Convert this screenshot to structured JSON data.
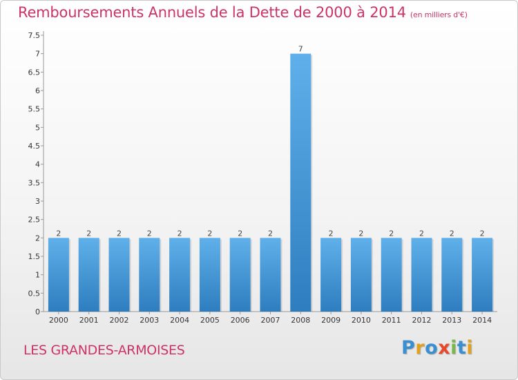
{
  "title": "Remboursements Annuels de la Dette de 2000 à 2014",
  "unit_label": "(en milliers d'€)",
  "commune": "LES GRANDES-ARMOISES",
  "logo": {
    "letters": [
      "P",
      "r",
      "o",
      "x",
      "i",
      "t",
      "i"
    ],
    "colors": [
      "#3a8fd0",
      "#e0a020",
      "#3a8fd0",
      "#e8472a",
      "#7ab648",
      "#3a8fd0",
      "#e0a020"
    ]
  },
  "colors": {
    "title": "#cc3366",
    "bar_top": "#5fb0ea",
    "bar_bottom": "#2e7dbf"
  },
  "chart_data": {
    "type": "bar",
    "categories": [
      "2000",
      "2001",
      "2002",
      "2003",
      "2004",
      "2005",
      "2006",
      "2007",
      "2008",
      "2009",
      "2010",
      "2011",
      "2012",
      "2013",
      "2014"
    ],
    "values": [
      2,
      2,
      2,
      2,
      2,
      2,
      2,
      2,
      7,
      2,
      2,
      2,
      2,
      2,
      2
    ],
    "data_labels": [
      "2",
      "2",
      "2",
      "2",
      "2",
      "2",
      "2",
      "2",
      "7",
      "2",
      "2",
      "2",
      "2",
      "2",
      "2"
    ],
    "ylim": [
      0,
      7.5
    ],
    "yticks": [
      0,
      0.5,
      1,
      1.5,
      2,
      2.5,
      3,
      3.5,
      4,
      4.5,
      5,
      5.5,
      6,
      6.5,
      7,
      7.5
    ],
    "ytick_labels": [
      "0",
      "0.5",
      "1",
      "1.5",
      "2",
      "2.5",
      "3",
      "3.5",
      "4",
      "4.5",
      "5",
      "5.5",
      "6",
      "6.5",
      "7",
      "7.5"
    ],
    "grid": false
  }
}
